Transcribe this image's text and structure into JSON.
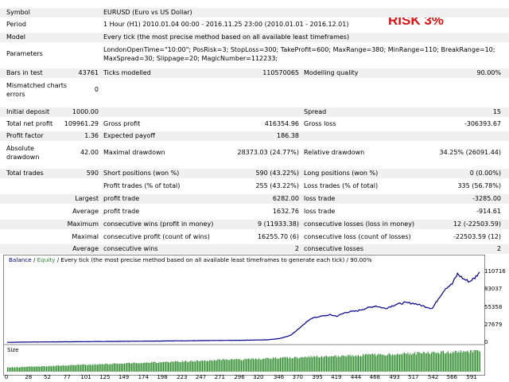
{
  "risk_label": "RISK 3%",
  "header": {
    "symbol_label": "Symbol",
    "symbol_value": "EURUSD (Euro vs US Dollar)",
    "period_label": "Period",
    "period_value": "1 Hour (H1) 2010.01.04 00:00 - 2016.11.25 23:00 (2010.01.01 - 2016.12.01)",
    "model_label": "Model",
    "model_value": "Every tick (the most precise method based on all available least timeframes)",
    "params_label": "Parameters",
    "params_line1": "LondonOpenTime=\"10:00\"; PosRisk=3; StopLoss=300; TakeProfit=600; MaxRange=380; MinRange=110; BreakRange=10;",
    "params_line2": "MaxSpread=30; Slippage=20; MagicNumber=112233;"
  },
  "stats": {
    "bars_label": "Bars in test",
    "bars_value": "43761",
    "ticks_label": "Ticks modelled",
    "ticks_value": "110570065",
    "quality_label": "Modelling quality",
    "quality_value": "90.00%",
    "mismatch_label1": "Mismatched charts",
    "mismatch_label2": "errors",
    "mismatch_value": "0",
    "deposit_label": "Initial deposit",
    "deposit_value": "1000.00",
    "spread_label": "Spread",
    "spread_value": "15",
    "netprofit_label": "Total net profit",
    "netprofit_value": "109961.29",
    "grossprofit_label": "Gross profit",
    "grossprofit_value": "416354.96",
    "grossloss_label": "Gross loss",
    "grossloss_value": "-306393.67",
    "pf_label": "Profit factor",
    "pf_value": "1.36",
    "payoff_label": "Expected payoff",
    "payoff_value": "186.38",
    "absdd_label1": "Absolute",
    "absdd_label2": "drawdown",
    "absdd_value": "42.00",
    "maxdd_label": "Maximal drawdown",
    "maxdd_value": "28373.03 (24.77%)",
    "reldd_label": "Relative drawdown",
    "reldd_value": "34.25% (26091.44)",
    "trades_label": "Total trades",
    "trades_value": "590",
    "short_label": "Short positions (won %)",
    "short_value": "590 (43.22%)",
    "long_label": "Long positions (won %)",
    "long_value": "0 (0.00%)",
    "ptrades_label": "Profit trades (% of total)",
    "ptrades_value": "255 (43.22%)",
    "ltrades_label": "Loss trades (% of total)",
    "ltrades_value": "335 (56.78%)",
    "largest_label": "Largest",
    "largest_profit_label": "profit trade",
    "largest_profit_value": "6282.00",
    "largest_loss_label": "loss trade",
    "largest_loss_value": "-3285.00",
    "average_label": "Average",
    "avg_profit_label": "profit trade",
    "avg_profit_value": "1632.76",
    "avg_loss_label": "loss trade",
    "avg_loss_value": "-914.61",
    "maximum_label": "Maximum",
    "maxwins_label": "consecutive wins (profit in money)",
    "maxwins_value": "9 (11933.38)",
    "maxlosses_label": "consecutive losses (loss in money)",
    "maxlosses_value": "12 (-22503.59)",
    "maximal_label": "Maximal",
    "maxprofit_label": "consecutive profit (count of wins)",
    "maxprofit_value": "16255.70 (6)",
    "maxloss_label": "consecutive loss (count of losses)",
    "maxloss_value": "-22503.59 (12)",
    "average2_label": "Average",
    "avgwins_label": "consecutive wins",
    "avgwins_value": "2",
    "avglosses_label": "consecutive losses",
    "avglosses_value": "2"
  },
  "chart_data": {
    "type": "line",
    "legend_balance": "Balance",
    "legend_sep": " / ",
    "legend_equity": "Equity",
    "legend_rest": " / Every tick (the most precise method based on all available least timeframes to generate each tick) / 90.00%",
    "size_label": "Size",
    "y_ticks": [
      "110716",
      "83037",
      "55358",
      "27679",
      "0"
    ],
    "y_tick_values": [
      110716,
      83037,
      55358,
      27679,
      0
    ],
    "x_ticks": [
      "0",
      "28",
      "52",
      "77",
      "101",
      "125",
      "149",
      "174",
      "198",
      "223",
      "247",
      "271",
      "296",
      "320",
      "346",
      "370",
      "395",
      "419",
      "444",
      "468",
      "493",
      "517",
      "542",
      "566",
      "591"
    ],
    "x_max": 600,
    "y_max": 122000,
    "balance_anchors": [
      [
        0,
        1000
      ],
      [
        28,
        1500
      ],
      [
        77,
        1900
      ],
      [
        101,
        2100
      ],
      [
        149,
        2600
      ],
      [
        198,
        3200
      ],
      [
        247,
        3700
      ],
      [
        296,
        4300
      ],
      [
        330,
        5000
      ],
      [
        346,
        7000
      ],
      [
        360,
        12000
      ],
      [
        370,
        22000
      ],
      [
        378,
        30000
      ],
      [
        385,
        38000
      ],
      [
        395,
        41000
      ],
      [
        410,
        44000
      ],
      [
        419,
        42000
      ],
      [
        430,
        48000
      ],
      [
        444,
        50000
      ],
      [
        455,
        54000
      ],
      [
        468,
        58000
      ],
      [
        480,
        54000
      ],
      [
        493,
        60000
      ],
      [
        505,
        63000
      ],
      [
        517,
        62000
      ],
      [
        528,
        58000
      ],
      [
        540,
        54000
      ],
      [
        549,
        72000
      ],
      [
        557,
        86000
      ],
      [
        565,
        92000
      ],
      [
        572,
        108000
      ],
      [
        580,
        100000
      ],
      [
        587,
        96000
      ],
      [
        594,
        102000
      ],
      [
        600,
        110961
      ]
    ],
    "line_color": "#00008b",
    "size_bar_color": "#2e8b2e",
    "grid": false
  }
}
